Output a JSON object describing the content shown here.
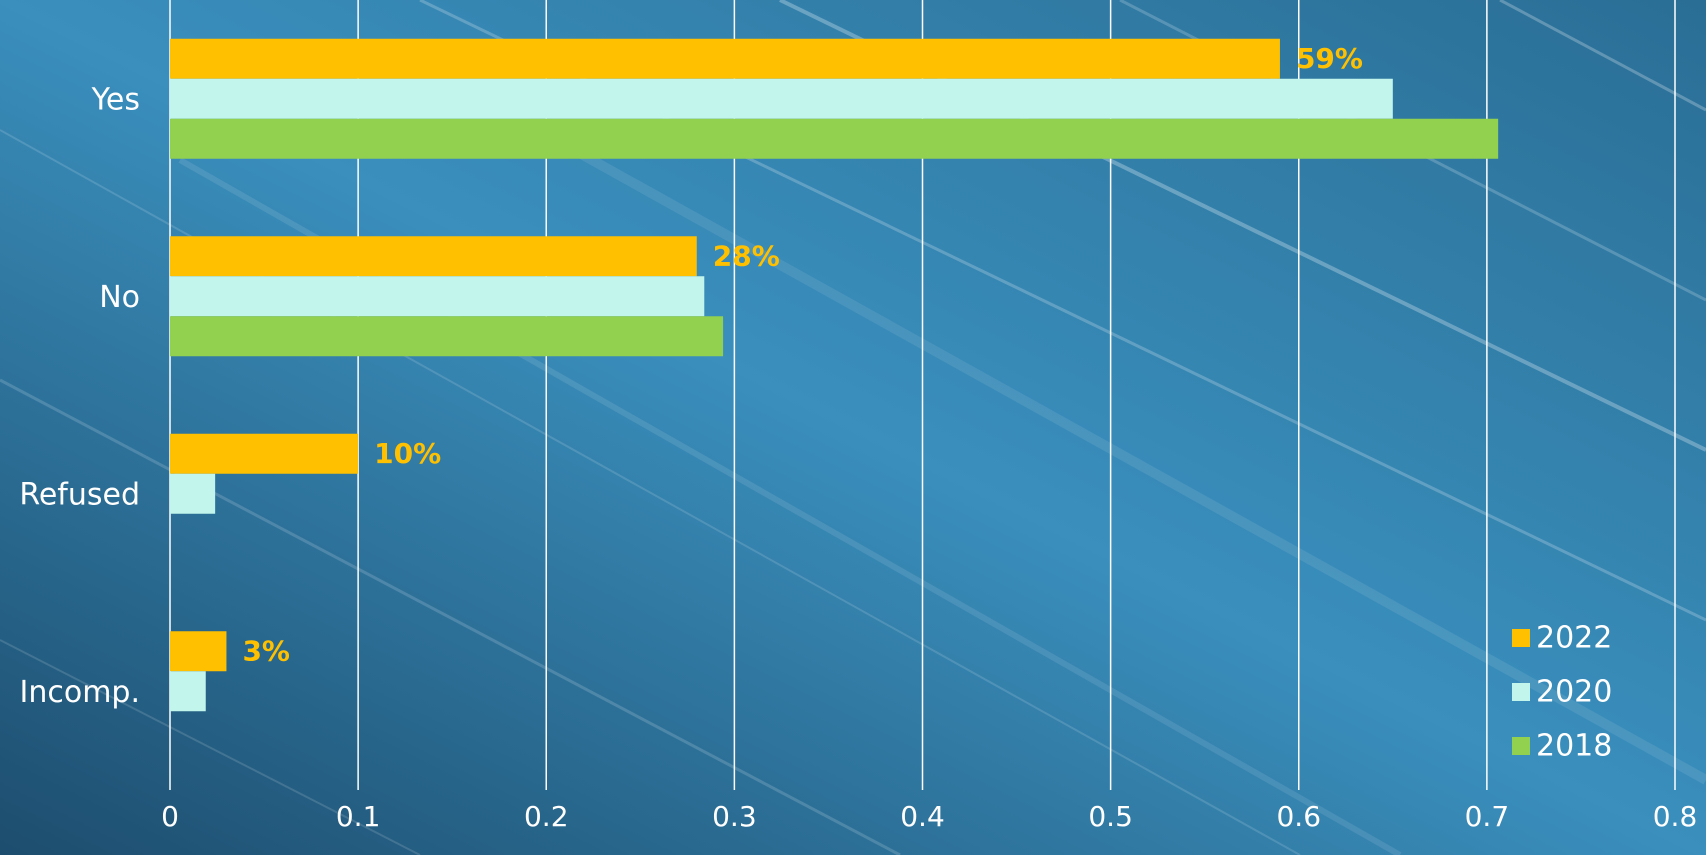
{
  "chart_data": {
    "type": "bar",
    "orientation": "horizontal",
    "categories": [
      "Yes",
      "No",
      "Refused",
      "Incomp."
    ],
    "series": [
      {
        "name": "2022",
        "values": [
          0.59,
          0.28,
          0.1,
          0.03
        ],
        "color": "#FFC000",
        "labels": [
          "59%",
          "28%",
          "10%",
          "3%"
        ]
      },
      {
        "name": "2020",
        "values": [
          0.65,
          0.284,
          0.024,
          0.019
        ],
        "color": "#C2F6EC"
      },
      {
        "name": "2018",
        "values": [
          0.706,
          0.294,
          null,
          null
        ],
        "color": "#92D050"
      }
    ],
    "xlim": [
      0,
      0.8
    ],
    "x_ticks": [
      "0",
      "0.1",
      "0.2",
      "0.3",
      "0.4",
      "0.5",
      "0.6",
      "0.7",
      "0.8"
    ],
    "grid": "vertical",
    "legend_position": "bottom-right",
    "title": "",
    "xlabel": "",
    "ylabel": ""
  },
  "colors": {
    "background": "#2E6F93",
    "grid": "#FFFFFF",
    "label_text": "#FFFFFF",
    "data_label": "#FFC000"
  }
}
